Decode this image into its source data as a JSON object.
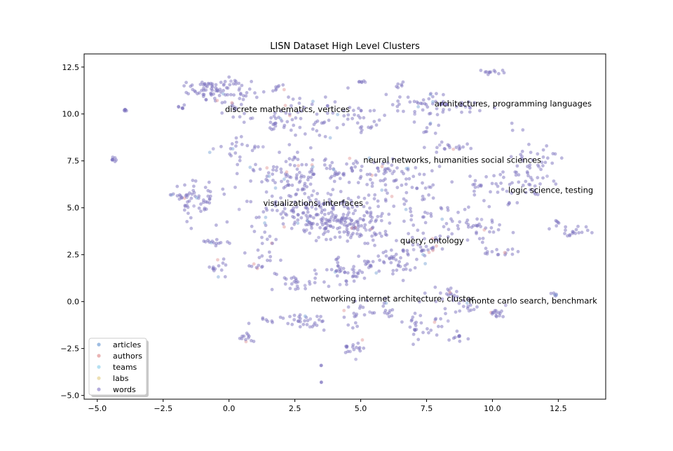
{
  "chart_data": {
    "type": "scatter",
    "title": "LISN Dataset High Level Clusters",
    "xlabel": "",
    "ylabel": "",
    "xlim": [
      -5.5,
      14.3
    ],
    "ylim": [
      -5.2,
      13.2
    ],
    "x_ticks": [
      -5.0,
      -2.5,
      0.0,
      2.5,
      5.0,
      7.5,
      10.0,
      12.5
    ],
    "x_tick_labels": [
      "−5.0",
      "−2.5",
      "0.0",
      "2.5",
      "5.0",
      "7.5",
      "10.0",
      "12.5"
    ],
    "y_ticks": [
      12.5,
      10.0,
      7.5,
      5.0,
      2.5,
      0.0,
      -2.5,
      -5.0
    ],
    "y_tick_labels": [
      "12.5",
      "10.0",
      "7.5",
      "5.0",
      "2.5",
      "0.0",
      "−2.5",
      "−5.0"
    ],
    "grid": false,
    "legend_position": "bottom-left",
    "series": [
      {
        "name": "articles",
        "color": "#7ea7d8"
      },
      {
        "name": "authors",
        "color": "#e39b9b"
      },
      {
        "name": "teams",
        "color": "#9ed6ee"
      },
      {
        "name": "labs",
        "color": "#e8d69a"
      },
      {
        "name": "words",
        "color": "#9a8fcf"
      }
    ],
    "point_color": "#7a6fbd",
    "clusters": [
      {
        "cx": -0.8,
        "cy": 11.3,
        "sx": 0.4,
        "sy": 0.3,
        "n": 55
      },
      {
        "cx": 0.3,
        "cy": 11.0,
        "sx": 0.4,
        "sy": 0.5,
        "n": 40
      },
      {
        "cx": 1.9,
        "cy": 11.4,
        "sx": 0.1,
        "sy": 0.1,
        "n": 8
      },
      {
        "cx": -4.0,
        "cy": 10.2,
        "sx": 0.1,
        "sy": 0.05,
        "n": 6
      },
      {
        "cx": -1.7,
        "cy": 10.4,
        "sx": 0.2,
        "sy": 0.1,
        "n": 6
      },
      {
        "cx": 1.8,
        "cy": 9.7,
        "sx": 0.8,
        "sy": 0.4,
        "n": 40
      },
      {
        "cx": 3.5,
        "cy": 10.0,
        "sx": 1.0,
        "sy": 0.5,
        "n": 40
      },
      {
        "cx": 5.0,
        "cy": 11.7,
        "sx": 0.1,
        "sy": 0.05,
        "n": 6
      },
      {
        "cx": 5.2,
        "cy": 9.5,
        "sx": 0.4,
        "sy": 0.5,
        "n": 20
      },
      {
        "cx": 6.4,
        "cy": 11.5,
        "sx": 0.1,
        "sy": 0.1,
        "n": 6
      },
      {
        "cx": 7.5,
        "cy": 10.5,
        "sx": 0.6,
        "sy": 0.3,
        "n": 45
      },
      {
        "cx": 9.9,
        "cy": 12.2,
        "sx": 0.3,
        "sy": 0.1,
        "n": 12
      },
      {
        "cx": 9.1,
        "cy": 10.4,
        "sx": 0.3,
        "sy": 0.2,
        "n": 12
      },
      {
        "cx": 7.5,
        "cy": 9.5,
        "sx": 0.3,
        "sy": 0.5,
        "n": 12
      },
      {
        "cx": -4.4,
        "cy": 7.6,
        "sx": 0.1,
        "sy": 0.1,
        "n": 8
      },
      {
        "cx": -1.2,
        "cy": 5.4,
        "sx": 0.4,
        "sy": 0.5,
        "n": 55
      },
      {
        "cx": -2.0,
        "cy": 5.7,
        "sx": 0.1,
        "sy": 0.05,
        "n": 6
      },
      {
        "cx": 0.5,
        "cy": 8.2,
        "sx": 0.6,
        "sy": 0.4,
        "n": 20
      },
      {
        "cx": 2.0,
        "cy": 6.5,
        "sx": 1.0,
        "sy": 0.7,
        "n": 90
      },
      {
        "cx": 3.3,
        "cy": 4.8,
        "sx": 1.0,
        "sy": 0.5,
        "n": 120
      },
      {
        "cx": 4.5,
        "cy": 4.0,
        "sx": 0.9,
        "sy": 0.4,
        "n": 120
      },
      {
        "cx": 3.8,
        "cy": 7.0,
        "sx": 1.0,
        "sy": 0.4,
        "n": 50
      },
      {
        "cx": 6.0,
        "cy": 6.8,
        "sx": 1.0,
        "sy": 0.5,
        "n": 55
      },
      {
        "cx": 6.5,
        "cy": 5.5,
        "sx": 1.0,
        "sy": 0.6,
        "n": 50
      },
      {
        "cx": 8.5,
        "cy": 8.2,
        "sx": 0.5,
        "sy": 0.15,
        "n": 18
      },
      {
        "cx": 11.5,
        "cy": 7.5,
        "sx": 0.6,
        "sy": 0.6,
        "n": 40
      },
      {
        "cx": 11.0,
        "cy": 6.2,
        "sx": 0.8,
        "sy": 0.4,
        "n": 35
      },
      {
        "cx": 9.5,
        "cy": 6.2,
        "sx": 0.3,
        "sy": 0.2,
        "n": 12
      },
      {
        "cx": 8.5,
        "cy": 4.6,
        "sx": 0.6,
        "sy": 0.4,
        "n": 25
      },
      {
        "cx": 9.6,
        "cy": 3.8,
        "sx": 0.4,
        "sy": 0.3,
        "n": 25
      },
      {
        "cx": 10.2,
        "cy": 2.6,
        "sx": 0.3,
        "sy": 0.2,
        "n": 15
      },
      {
        "cx": 13.1,
        "cy": 3.7,
        "sx": 0.3,
        "sy": 0.15,
        "n": 18
      },
      {
        "cx": 12.5,
        "cy": 4.0,
        "sx": 0.1,
        "sy": 0.2,
        "n": 5
      },
      {
        "cx": -0.5,
        "cy": 3.1,
        "sx": 0.2,
        "sy": 0.1,
        "n": 14
      },
      {
        "cx": -0.4,
        "cy": 1.8,
        "sx": 0.2,
        "sy": 0.4,
        "n": 14
      },
      {
        "cx": 1.4,
        "cy": 3.3,
        "sx": 0.3,
        "sy": 0.6,
        "n": 20
      },
      {
        "cx": 1.1,
        "cy": 1.9,
        "sx": 0.2,
        "sy": 0.1,
        "n": 8
      },
      {
        "cx": 2.5,
        "cy": 1.0,
        "sx": 0.5,
        "sy": 0.3,
        "n": 25
      },
      {
        "cx": 4.2,
        "cy": 1.5,
        "sx": 0.5,
        "sy": 0.4,
        "n": 35
      },
      {
        "cx": 5.4,
        "cy": 2.2,
        "sx": 0.6,
        "sy": 0.4,
        "n": 35
      },
      {
        "cx": 6.5,
        "cy": 2.3,
        "sx": 0.3,
        "sy": 0.6,
        "n": 25
      },
      {
        "cx": 7.5,
        "cy": 3.0,
        "sx": 0.4,
        "sy": 0.4,
        "n": 30
      },
      {
        "cx": 8.2,
        "cy": 0.4,
        "sx": 0.4,
        "sy": 0.2,
        "n": 18
      },
      {
        "cx": 9.0,
        "cy": -0.3,
        "sx": 0.3,
        "sy": 0.2,
        "n": 15
      },
      {
        "cx": 10.3,
        "cy": -0.7,
        "sx": 0.2,
        "sy": 0.2,
        "n": 15
      },
      {
        "cx": 12.4,
        "cy": 0.4,
        "sx": 0.1,
        "sy": 0.1,
        "n": 6
      },
      {
        "cx": 2.5,
        "cy": -1.0,
        "sx": 0.8,
        "sy": 0.3,
        "n": 40
      },
      {
        "cx": 4.8,
        "cy": -0.5,
        "sx": 0.3,
        "sy": 0.5,
        "n": 20
      },
      {
        "cx": 4.8,
        "cy": -2.4,
        "sx": 0.2,
        "sy": 0.2,
        "n": 18
      },
      {
        "cx": 0.6,
        "cy": -1.9,
        "sx": 0.2,
        "sy": 0.2,
        "n": 12
      },
      {
        "cx": 7.5,
        "cy": -1.2,
        "sx": 0.5,
        "sy": 0.5,
        "n": 30
      },
      {
        "cx": 6.0,
        "cy": -0.5,
        "sx": 0.3,
        "sy": 0.3,
        "n": 12
      },
      {
        "cx": 8.7,
        "cy": -1.8,
        "sx": 0.3,
        "sy": 0.3,
        "n": 12
      },
      {
        "cx": 3.5,
        "cy": -3.4,
        "sx": 0.01,
        "sy": 0.01,
        "n": 2
      },
      {
        "cx": 3.5,
        "cy": -4.3,
        "sx": 0.01,
        "sy": 0.01,
        "n": 2
      },
      {
        "cx": 10.6,
        "cy": 5.2,
        "sx": 0.05,
        "sy": 0.05,
        "n": 3
      }
    ],
    "annotations": [
      {
        "text": "discrete mathematics, vertices",
        "x": -0.15,
        "y": 10.1
      },
      {
        "text": "architectures, programming languages",
        "x": 7.8,
        "y": 10.4
      },
      {
        "text": "neural networks, humanities social sciences",
        "x": 5.1,
        "y": 7.4
      },
      {
        "text": "logic science, testing",
        "x": 10.6,
        "y": 5.8
      },
      {
        "text": "visualizations, interfaces",
        "x": 1.3,
        "y": 5.1
      },
      {
        "text": "query, ontology",
        "x": 6.5,
        "y": 3.1
      },
      {
        "text": "networking internet architecture, cluster",
        "x": 3.1,
        "y": 0.0
      },
      {
        "text": "monte carlo search, benchmark",
        "x": 9.1,
        "y": -0.1
      }
    ]
  }
}
